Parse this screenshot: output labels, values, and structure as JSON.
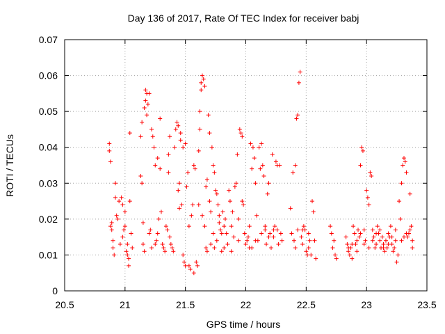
{
  "chart_data": {
    "type": "scatter",
    "title": "Day 136 of 2017, Rate Of TEC Index for receiver babj",
    "xlabel": "GPS time / hours",
    "ylabel": "ROTI / TECUs",
    "xlim": [
      20.5,
      23.5
    ],
    "ylim": [
      0,
      0.07
    ],
    "xticks": [
      "20.5",
      "21",
      "21.5",
      "22",
      "22.5",
      "23",
      "23.5"
    ],
    "yticks": [
      "0",
      "0.01",
      "0.02",
      "0.03",
      "0.04",
      "0.05",
      "0.06",
      "0.07"
    ],
    "grid": true,
    "marker": "+",
    "color": "#ff0000",
    "series": [
      {
        "name": "ROTI",
        "points": [
          [
            20.87,
            0.041
          ],
          [
            20.87,
            0.039
          ],
          [
            20.88,
            0.036
          ],
          [
            20.88,
            0.018
          ],
          [
            20.89,
            0.017
          ],
          [
            20.89,
            0.019
          ],
          [
            20.9,
            0.014
          ],
          [
            20.9,
            0.012
          ],
          [
            20.91,
            0.01
          ],
          [
            20.92,
            0.03
          ],
          [
            20.92,
            0.026
          ],
          [
            20.93,
            0.021
          ],
          [
            20.94,
            0.02
          ],
          [
            20.95,
            0.025
          ],
          [
            20.96,
            0.013
          ],
          [
            20.97,
            0.026
          ],
          [
            20.98,
            0.024
          ],
          [
            20.98,
            0.015
          ],
          [
            20.99,
            0.017
          ],
          [
            21.0,
            0.022
          ],
          [
            21.0,
            0.018
          ],
          [
            21.01,
            0.011
          ],
          [
            21.02,
            0.013
          ],
          [
            21.02,
            0.01
          ],
          [
            21.03,
            0.007
          ],
          [
            21.03,
            0.009
          ],
          [
            21.04,
            0.025
          ],
          [
            21.04,
            0.044
          ],
          [
            21.05,
            0.016
          ],
          [
            21.06,
            0.012
          ],
          [
            21.13,
            0.043
          ],
          [
            21.13,
            0.032
          ],
          [
            21.14,
            0.047
          ],
          [
            21.14,
            0.03
          ],
          [
            21.15,
            0.019
          ],
          [
            21.15,
            0.013
          ],
          [
            21.16,
            0.011
          ],
          [
            21.16,
            0.051
          ],
          [
            21.17,
            0.056
          ],
          [
            21.17,
            0.053
          ],
          [
            21.18,
            0.055
          ],
          [
            21.18,
            0.049
          ],
          [
            21.19,
            0.052
          ],
          [
            21.2,
            0.055
          ],
          [
            21.2,
            0.016
          ],
          [
            21.21,
            0.017
          ],
          [
            21.22,
            0.045
          ],
          [
            21.22,
            0.012
          ],
          [
            21.23,
            0.043
          ],
          [
            21.24,
            0.04
          ],
          [
            21.25,
            0.035
          ],
          [
            21.25,
            0.013
          ],
          [
            21.26,
            0.014
          ],
          [
            21.27,
            0.037
          ],
          [
            21.27,
            0.016
          ],
          [
            21.28,
            0.02
          ],
          [
            21.29,
            0.048
          ],
          [
            21.29,
            0.034
          ],
          [
            21.3,
            0.022
          ],
          [
            21.31,
            0.013
          ],
          [
            21.32,
            0.012
          ],
          [
            21.33,
            0.011
          ],
          [
            21.34,
            0.018
          ],
          [
            21.35,
            0.017
          ],
          [
            21.36,
            0.038
          ],
          [
            21.36,
            0.033
          ],
          [
            21.37,
            0.043
          ],
          [
            21.37,
            0.015
          ],
          [
            21.38,
            0.013
          ],
          [
            21.39,
            0.012
          ],
          [
            21.4,
            0.011
          ],
          [
            21.41,
            0.04
          ],
          [
            21.42,
            0.045
          ],
          [
            21.43,
            0.047
          ],
          [
            21.44,
            0.046
          ],
          [
            21.44,
            0.028
          ],
          [
            21.45,
            0.03
          ],
          [
            21.45,
            0.023
          ],
          [
            21.46,
            0.044
          ],
          [
            21.46,
            0.042
          ],
          [
            21.47,
            0.024
          ],
          [
            21.48,
            0.04
          ],
          [
            21.48,
            0.01
          ],
          [
            21.49,
            0.008
          ],
          [
            21.5,
            0.007
          ],
          [
            21.5,
            0.041
          ],
          [
            21.51,
            0.029
          ],
          [
            21.52,
            0.033
          ],
          [
            21.53,
            0.018
          ],
          [
            21.53,
            0.007
          ],
          [
            21.54,
            0.006
          ],
          [
            21.55,
            0.021
          ],
          [
            21.56,
            0.024
          ],
          [
            21.57,
            0.035
          ],
          [
            21.57,
            0.005
          ],
          [
            21.58,
            0.034
          ],
          [
            21.59,
            0.008
          ],
          [
            21.6,
            0.007
          ],
          [
            21.61,
            0.039
          ],
          [
            21.61,
            0.024
          ],
          [
            21.62,
            0.045
          ],
          [
            21.62,
            0.05
          ],
          [
            21.63,
            0.056
          ],
          [
            21.63,
            0.058
          ],
          [
            21.64,
            0.06
          ],
          [
            21.64,
            0.021
          ],
          [
            21.65,
            0.059
          ],
          [
            21.66,
            0.057
          ],
          [
            21.66,
            0.018
          ],
          [
            21.67,
            0.029
          ],
          [
            21.67,
            0.012
          ],
          [
            21.68,
            0.031
          ],
          [
            21.68,
            0.011
          ],
          [
            21.69,
            0.049
          ],
          [
            21.7,
            0.044
          ],
          [
            21.7,
            0.025
          ],
          [
            21.71,
            0.022
          ],
          [
            21.71,
            0.013
          ],
          [
            21.72,
            0.04
          ],
          [
            21.73,
            0.035
          ],
          [
            21.73,
            0.016
          ],
          [
            21.74,
            0.033
          ],
          [
            21.74,
            0.012
          ],
          [
            21.75,
            0.028
          ],
          [
            21.76,
            0.027
          ],
          [
            21.76,
            0.014
          ],
          [
            21.77,
            0.024
          ],
          [
            21.78,
            0.021
          ],
          [
            21.78,
            0.019
          ],
          [
            21.79,
            0.017
          ],
          [
            21.8,
            0.016
          ],
          [
            21.8,
            0.011
          ],
          [
            21.81,
            0.022
          ],
          [
            21.82,
            0.018
          ],
          [
            21.82,
            0.012
          ],
          [
            21.83,
            0.02
          ],
          [
            21.84,
            0.016
          ],
          [
            21.85,
            0.013
          ],
          [
            21.86,
            0.028
          ],
          [
            21.87,
            0.025
          ],
          [
            21.88,
            0.018
          ],
          [
            21.88,
            0.011
          ],
          [
            21.89,
            0.022
          ],
          [
            21.9,
            0.015
          ],
          [
            21.91,
            0.029
          ],
          [
            21.92,
            0.03
          ],
          [
            21.93,
            0.038
          ],
          [
            21.94,
            0.02
          ],
          [
            21.94,
            0.014
          ],
          [
            21.95,
            0.045
          ],
          [
            21.96,
            0.044
          ],
          [
            21.97,
            0.043
          ],
          [
            21.97,
            0.025
          ],
          [
            21.98,
            0.024
          ],
          [
            21.99,
            0.016
          ],
          [
            22.0,
            0.013
          ],
          [
            22.01,
            0.014
          ],
          [
            22.02,
            0.015
          ],
          [
            22.03,
            0.018
          ],
          [
            22.04,
            0.041
          ],
          [
            22.05,
            0.034
          ],
          [
            22.05,
            0.012
          ],
          [
            22.06,
            0.04
          ],
          [
            22.07,
            0.037
          ],
          [
            22.08,
            0.03
          ],
          [
            22.09,
            0.021
          ],
          [
            22.1,
            0.014
          ],
          [
            22.11,
            0.04
          ],
          [
            22.12,
            0.034
          ],
          [
            22.13,
            0.041
          ],
          [
            22.14,
            0.035
          ],
          [
            22.15,
            0.032
          ],
          [
            22.16,
            0.017
          ],
          [
            22.17,
            0.013
          ],
          [
            22.18,
            0.027
          ],
          [
            22.19,
            0.03
          ],
          [
            22.2,
            0.016
          ],
          [
            22.21,
            0.012
          ],
          [
            22.22,
            0.038
          ],
          [
            22.23,
            0.015
          ],
          [
            22.24,
            0.018
          ],
          [
            22.25,
            0.036
          ],
          [
            22.26,
            0.017
          ],
          [
            22.27,
            0.013
          ],
          [
            22.28,
            0.035
          ],
          [
            22.29,
            0.016
          ],
          [
            22.3,
            0.014
          ],
          [
            22.37,
            0.023
          ],
          [
            22.38,
            0.016
          ],
          [
            22.39,
            0.033
          ],
          [
            22.4,
            0.014
          ],
          [
            22.41,
            0.012
          ],
          [
            22.42,
            0.048
          ],
          [
            22.43,
            0.049
          ],
          [
            22.43,
            0.017
          ],
          [
            22.44,
            0.058
          ],
          [
            22.45,
            0.061
          ],
          [
            22.46,
            0.015
          ],
          [
            22.47,
            0.013
          ],
          [
            22.48,
            0.018
          ],
          [
            22.49,
            0.017
          ],
          [
            22.5,
            0.011
          ],
          [
            22.51,
            0.01
          ],
          [
            22.52,
            0.016
          ],
          [
            22.53,
            0.014
          ],
          [
            22.54,
            0.01
          ],
          [
            22.55,
            0.025
          ],
          [
            22.56,
            0.022
          ],
          [
            22.57,
            0.014
          ],
          [
            22.58,
            0.009
          ],
          [
            22.7,
            0.018
          ],
          [
            22.71,
            0.016
          ],
          [
            22.72,
            0.012
          ],
          [
            22.73,
            0.014
          ],
          [
            22.74,
            0.01
          ],
          [
            22.75,
            0.009
          ],
          [
            22.83,
            0.015
          ],
          [
            22.84,
            0.013
          ],
          [
            22.85,
            0.011
          ],
          [
            22.86,
            0.01
          ],
          [
            22.87,
            0.012
          ],
          [
            22.88,
            0.009
          ],
          [
            22.89,
            0.018
          ],
          [
            22.9,
            0.016
          ],
          [
            22.91,
            0.013
          ],
          [
            22.92,
            0.011
          ],
          [
            22.93,
            0.017
          ],
          [
            22.94,
            0.015
          ],
          [
            22.95,
            0.035
          ],
          [
            22.96,
            0.04
          ],
          [
            22.97,
            0.039
          ],
          [
            22.98,
            0.013
          ],
          [
            22.99,
            0.014
          ],
          [
            23.0,
            0.028
          ],
          [
            23.01,
            0.026
          ],
          [
            23.02,
            0.024
          ],
          [
            23.03,
            0.033
          ],
          [
            23.04,
            0.032
          ],
          [
            23.05,
            0.017
          ],
          [
            23.06,
            0.015
          ],
          [
            23.07,
            0.012
          ],
          [
            23.08,
            0.013
          ],
          [
            23.09,
            0.018
          ],
          [
            23.1,
            0.016
          ],
          [
            23.11,
            0.014
          ],
          [
            23.12,
            0.012
          ],
          [
            23.13,
            0.015
          ],
          [
            23.14,
            0.013
          ],
          [
            23.15,
            0.011
          ],
          [
            23.16,
            0.014
          ],
          [
            23.17,
            0.012
          ],
          [
            23.18,
            0.016
          ],
          [
            23.19,
            0.015
          ],
          [
            23.2,
            0.018
          ],
          [
            23.21,
            0.013
          ],
          [
            23.22,
            0.011
          ],
          [
            23.23,
            0.012
          ],
          [
            23.24,
            0.014
          ],
          [
            23.25,
            0.008
          ],
          [
            23.26,
            0.01
          ],
          [
            23.27,
            0.025
          ],
          [
            23.28,
            0.02
          ],
          [
            23.29,
            0.03
          ],
          [
            23.3,
            0.035
          ],
          [
            23.31,
            0.037
          ],
          [
            23.32,
            0.036
          ],
          [
            23.33,
            0.033
          ],
          [
            23.34,
            0.015
          ],
          [
            23.35,
            0.016
          ],
          [
            23.36,
            0.027
          ],
          [
            23.37,
            0.018
          ],
          [
            23.38,
            0.014
          ],
          [
            23.38,
            0.012
          ],
          [
            23.36,
            0.017
          ],
          [
            23.33,
            0.016
          ],
          [
            23.31,
            0.015
          ],
          [
            23.29,
            0.014
          ],
          [
            23.24,
            0.017
          ],
          [
            23.21,
            0.015
          ],
          [
            23.18,
            0.013
          ],
          [
            23.14,
            0.012
          ],
          [
            23.11,
            0.017
          ],
          [
            23.08,
            0.016
          ],
          [
            23.05,
            0.014
          ],
          [
            23.02,
            0.012
          ],
          [
            22.98,
            0.017
          ],
          [
            22.95,
            0.016
          ],
          [
            22.92,
            0.014
          ],
          [
            22.88,
            0.013
          ],
          [
            22.85,
            0.012
          ],
          [
            22.41,
            0.035
          ],
          [
            22.47,
            0.017
          ],
          [
            22.52,
            0.012
          ],
          [
            22.26,
            0.035
          ],
          [
            22.23,
            0.017
          ],
          [
            22.19,
            0.015
          ],
          [
            22.16,
            0.018
          ],
          [
            22.13,
            0.016
          ],
          [
            22.08,
            0.014
          ],
          [
            22.03,
            0.012
          ]
        ]
      }
    ]
  }
}
